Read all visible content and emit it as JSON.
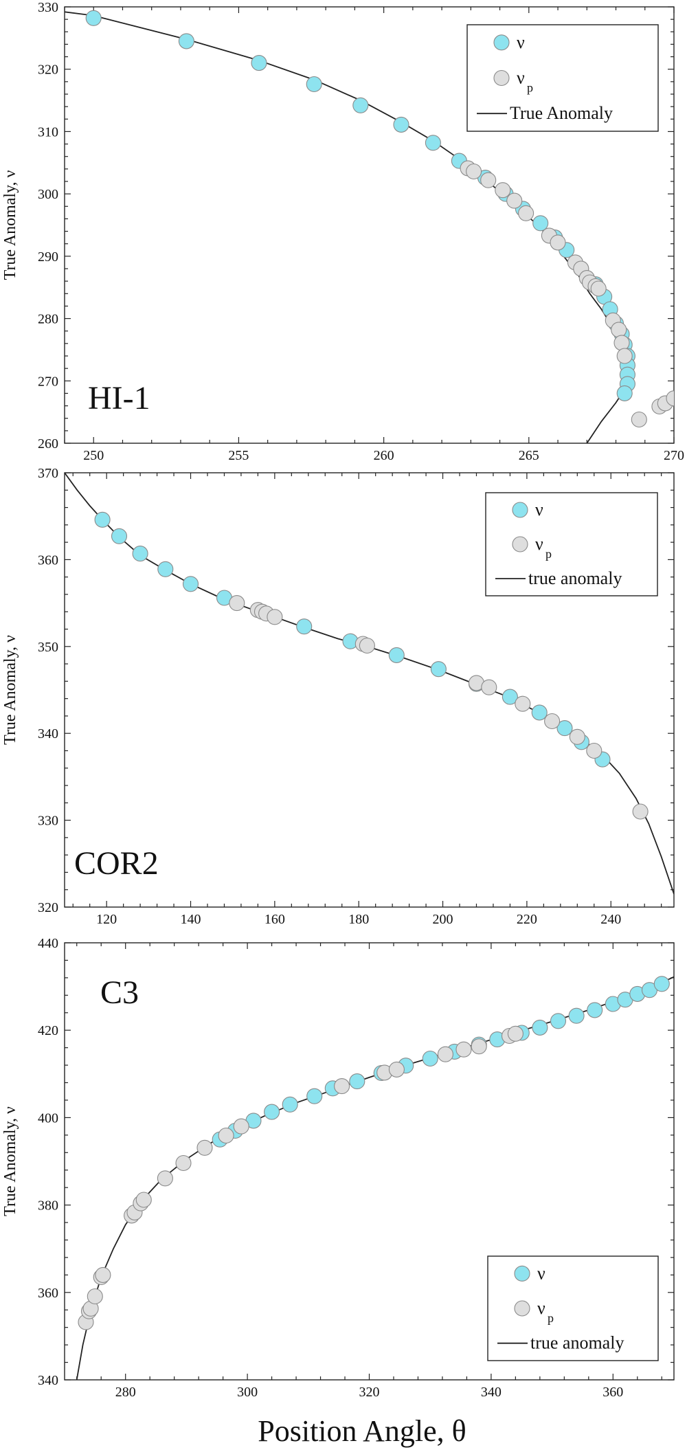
{
  "chart_data": [
    {
      "type": "scatter",
      "panel_label": "HI-1",
      "ylabel": "True Anomaly, ν",
      "xlim": [
        249,
        270
      ],
      "ylim": [
        260,
        330
      ],
      "xticks": [
        250,
        255,
        260,
        265,
        270
      ],
      "yticks": [
        260,
        270,
        280,
        290,
        300,
        310,
        320,
        330
      ],
      "legend": {
        "position": "top-right",
        "entries": [
          {
            "kind": "marker",
            "color": "#8ee3ef",
            "text": "ν"
          },
          {
            "kind": "marker",
            "color": "#dedede",
            "text": "ν",
            "sub": "p"
          },
          {
            "kind": "line",
            "text": "True Anomaly"
          }
        ]
      },
      "curve_points": [
        [
          249,
          329.2
        ],
        [
          250,
          328.6
        ],
        [
          253.2,
          324.8
        ],
        [
          255.7,
          321.4
        ],
        [
          257.6,
          318.3
        ],
        [
          259.2,
          315.0
        ],
        [
          260.6,
          311.5
        ],
        [
          261.7,
          308.5
        ],
        [
          262.6,
          305.6
        ],
        [
          263.3,
          303.0
        ],
        [
          264.1,
          300.0
        ],
        [
          264.7,
          297.5
        ],
        [
          265.3,
          295.0
        ],
        [
          265.8,
          292.5
        ],
        [
          266.2,
          290.0
        ],
        [
          266.7,
          287.0
        ],
        [
          267.1,
          284.0
        ],
        [
          267.5,
          281.5
        ],
        [
          267.9,
          278.5
        ],
        [
          268.2,
          275.0
        ],
        [
          268.35,
          272.0
        ],
        [
          268.4,
          270.5
        ],
        [
          268.35,
          269.0
        ],
        [
          268.0,
          266.5
        ],
        [
          267.5,
          263.5
        ],
        [
          267.0,
          260.0
        ]
      ],
      "series": [
        {
          "name": "ν",
          "color": "#8ee3ef",
          "points": [
            [
              250.0,
              328.2
            ],
            [
              253.2,
              324.5
            ],
            [
              255.7,
              321.0
            ],
            [
              257.6,
              317.6
            ],
            [
              259.2,
              314.2
            ],
            [
              260.6,
              311.1
            ],
            [
              261.7,
              308.2
            ],
            [
              262.6,
              305.3
            ],
            [
              263.5,
              302.6
            ],
            [
              264.2,
              300.0
            ],
            [
              264.8,
              297.6
            ],
            [
              265.4,
              295.3
            ],
            [
              265.9,
              293.0
            ],
            [
              266.3,
              291.0
            ],
            [
              266.8,
              288.0
            ],
            [
              267.3,
              285.5
            ],
            [
              267.6,
              283.5
            ],
            [
              267.8,
              281.5
            ],
            [
              268.0,
              279.2
            ],
            [
              268.2,
              277.5
            ],
            [
              268.3,
              275.8
            ],
            [
              268.4,
              274.0
            ],
            [
              268.4,
              272.5
            ],
            [
              268.4,
              271.0
            ],
            [
              268.4,
              269.5
            ],
            [
              268.3,
              268.0
            ]
          ]
        },
        {
          "name": "ν_p",
          "color": "#dedede",
          "points": [
            [
              262.9,
              304.1
            ],
            [
              263.1,
              303.6
            ],
            [
              263.6,
              302.2
            ],
            [
              264.1,
              300.6
            ],
            [
              264.5,
              298.9
            ],
            [
              264.9,
              296.9
            ],
            [
              265.7,
              293.3
            ],
            [
              266.0,
              292.2
            ],
            [
              266.6,
              289.0
            ],
            [
              266.8,
              288.0
            ],
            [
              267.0,
              286.5
            ],
            [
              267.1,
              285.8
            ],
            [
              267.3,
              285.2
            ],
            [
              267.4,
              284.8
            ],
            [
              267.9,
              279.7
            ],
            [
              268.1,
              278.2
            ],
            [
              268.2,
              276.1
            ],
            [
              268.3,
              274.0
            ],
            [
              268.8,
              263.8
            ],
            [
              269.5,
              265.9
            ],
            [
              269.7,
              266.4
            ],
            [
              270.0,
              267.2
            ]
          ]
        }
      ]
    },
    {
      "type": "scatter",
      "panel_label": "COR2",
      "ylabel": "True Anomaly, ν",
      "xlim": [
        110,
        255
      ],
      "ylim": [
        320,
        370
      ],
      "xticks": [
        120,
        140,
        160,
        180,
        200,
        220,
        240
      ],
      "yticks": [
        320,
        330,
        340,
        350,
        360,
        370
      ],
      "legend": {
        "position": "top-right",
        "entries": [
          {
            "kind": "marker",
            "color": "#8ee3ef",
            "text": "ν"
          },
          {
            "kind": "marker",
            "color": "#dedede",
            "text": "ν",
            "sub": "p"
          },
          {
            "kind": "line",
            "text": "true anomaly"
          }
        ]
      },
      "curve_points": [
        [
          110,
          370.0
        ],
        [
          113,
          368.0
        ],
        [
          116,
          366.2
        ],
        [
          119,
          364.6
        ],
        [
          123,
          362.6
        ],
        [
          128,
          360.5
        ],
        [
          134,
          358.8
        ],
        [
          140,
          357.2
        ],
        [
          148,
          355.4
        ],
        [
          155,
          354.2
        ],
        [
          160,
          353.4
        ],
        [
          167,
          352.2
        ],
        [
          175,
          350.9
        ],
        [
          182,
          350.0
        ],
        [
          190,
          348.8
        ],
        [
          199,
          347.3
        ],
        [
          207,
          345.8
        ],
        [
          215,
          344.3
        ],
        [
          222,
          342.6
        ],
        [
          228,
          340.9
        ],
        [
          233,
          339.4
        ],
        [
          238,
          337.5
        ],
        [
          242,
          335.4
        ],
        [
          246,
          332.5
        ],
        [
          249,
          329.6
        ],
        [
          252,
          325.8
        ],
        [
          255,
          321.5
        ]
      ],
      "series": [
        {
          "name": "ν",
          "color": "#8ee3ef",
          "points": [
            [
              119,
              364.6
            ],
            [
              123,
              362.7
            ],
            [
              128,
              360.7
            ],
            [
              134,
              358.9
            ],
            [
              140,
              357.2
            ],
            [
              148,
              355.6
            ],
            [
              167,
              352.3
            ],
            [
              178,
              350.6
            ],
            [
              189,
              349.0
            ],
            [
              199,
              347.4
            ],
            [
              208,
              345.7
            ],
            [
              216,
              344.2
            ],
            [
              223,
              342.4
            ],
            [
              229,
              340.6
            ],
            [
              233,
              339.0
            ],
            [
              238,
              337.0
            ]
          ]
        },
        {
          "name": "ν_p",
          "color": "#dedede",
          "points": [
            [
              151,
              355.0
            ],
            [
              156,
              354.2
            ],
            [
              157,
              354.0
            ],
            [
              158,
              353.8
            ],
            [
              160,
              353.4
            ],
            [
              181,
              350.3
            ],
            [
              182,
              350.1
            ],
            [
              208,
              345.8
            ],
            [
              211,
              345.3
            ],
            [
              219,
              343.4
            ],
            [
              226,
              341.4
            ],
            [
              232,
              339.6
            ],
            [
              236,
              338.0
            ],
            [
              247,
              331.0
            ]
          ]
        }
      ]
    },
    {
      "type": "scatter",
      "panel_label": "C3",
      "ylabel": "True Anomaly, ν",
      "xlabel": "Position Angle, θ",
      "xlim": [
        270,
        370
      ],
      "ylim": [
        340,
        440
      ],
      "xticks": [
        280,
        300,
        320,
        340,
        360
      ],
      "yticks": [
        340,
        360,
        380,
        400,
        420,
        440
      ],
      "legend": {
        "position": "bottom-right",
        "entries": [
          {
            "kind": "marker",
            "color": "#8ee3ef",
            "text": "ν"
          },
          {
            "kind": "marker",
            "color": "#dedede",
            "text": "ν",
            "sub": "p"
          },
          {
            "kind": "line",
            "text": "true anomaly"
          }
        ]
      },
      "curve_points": [
        [
          272,
          340.0
        ],
        [
          273,
          348.0
        ],
        [
          274,
          354.0
        ],
        [
          275,
          359.0
        ],
        [
          276,
          363.5
        ],
        [
          278,
          370.0
        ],
        [
          280,
          375.5
        ],
        [
          283,
          381.5
        ],
        [
          286,
          386.0
        ],
        [
          290,
          390.5
        ],
        [
          294,
          394.2
        ],
        [
          298,
          397.3
        ],
        [
          303,
          400.5
        ],
        [
          308,
          403.4
        ],
        [
          314,
          406.3
        ],
        [
          320,
          409.2
        ],
        [
          326,
          412.0
        ],
        [
          332,
          414.5
        ],
        [
          338,
          417.0
        ],
        [
          344,
          419.5
        ],
        [
          350,
          422.0
        ],
        [
          356,
          424.6
        ],
        [
          362,
          427.5
        ],
        [
          366,
          429.6
        ],
        [
          370,
          432.2
        ]
      ],
      "series": [
        {
          "name": "ν",
          "color": "#8ee3ef",
          "points": [
            [
              295.5,
              395.0
            ],
            [
              298,
              397.0
            ],
            [
              301,
              399.3
            ],
            [
              304,
              401.3
            ],
            [
              307,
              403.0
            ],
            [
              311,
              404.9
            ],
            [
              314,
              406.7
            ],
            [
              318,
              408.3
            ],
            [
              322,
              410.2
            ],
            [
              326,
              411.9
            ],
            [
              330,
              413.5
            ],
            [
              334,
              415.1
            ],
            [
              338,
              416.7
            ],
            [
              341,
              417.9
            ],
            [
              345,
              419.4
            ],
            [
              348,
              420.6
            ],
            [
              351,
              422.1
            ],
            [
              354,
              423.3
            ],
            [
              357,
              424.6
            ],
            [
              360,
              426.0
            ],
            [
              362,
              427.0
            ],
            [
              364,
              428.3
            ],
            [
              366,
              429.2
            ],
            [
              368,
              430.6
            ]
          ]
        },
        {
          "name": "ν_p",
          "color": "#dedede",
          "points": [
            [
              273.5,
              353.2
            ],
            [
              274.0,
              355.7
            ],
            [
              274.3,
              356.3
            ],
            [
              275.0,
              359.1
            ],
            [
              276.0,
              363.5
            ],
            [
              276.3,
              364.0
            ],
            [
              281.0,
              377.6
            ],
            [
              281.5,
              378.3
            ],
            [
              282.5,
              380.4
            ],
            [
              283.0,
              381.2
            ],
            [
              286.5,
              386.1
            ],
            [
              289.5,
              389.6
            ],
            [
              293.0,
              393.1
            ],
            [
              296.5,
              395.9
            ],
            [
              299.0,
              398.0
            ],
            [
              315.5,
              407.2
            ],
            [
              322.5,
              410.3
            ],
            [
              324.5,
              411.0
            ],
            [
              332.5,
              414.5
            ],
            [
              335.5,
              415.6
            ],
            [
              338.0,
              416.3
            ],
            [
              343.0,
              418.7
            ],
            [
              344.0,
              419.2
            ]
          ]
        }
      ]
    }
  ]
}
